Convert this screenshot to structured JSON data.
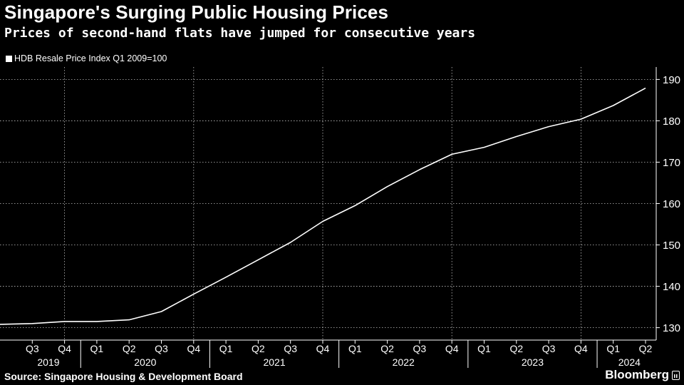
{
  "title": "Singapore's Surging Public Housing Prices",
  "subtitle": "Prices of second-hand flats have jumped for consecutive years",
  "source": "Source: Singapore Housing & Development Board",
  "brand": "Bloomberg",
  "colors": {
    "background": "#000000",
    "line": "#ffffff",
    "grid": "#ffffff",
    "text": "#ffffff"
  },
  "chart_data": {
    "type": "line",
    "legend_position": "top-left",
    "grid": true,
    "x": [
      "2019 Q2",
      "2019 Q3",
      "2019 Q4",
      "2020 Q1",
      "2020 Q2",
      "2020 Q3",
      "2020 Q4",
      "2021 Q1",
      "2021 Q2",
      "2021 Q3",
      "2021 Q4",
      "2022 Q1",
      "2022 Q2",
      "2022 Q3",
      "2022 Q4",
      "2023 Q1",
      "2023 Q2",
      "2023 Q3",
      "2023 Q4",
      "2024 Q1",
      "2024 Q2"
    ],
    "series": [
      {
        "name": "HDB Resale Price Index Q1 2009=100",
        "values": [
          130.8,
          131.0,
          131.5,
          131.5,
          131.9,
          133.9,
          138.1,
          142.2,
          146.4,
          150.6,
          155.7,
          159.5,
          164.1,
          168.2,
          171.9,
          173.6,
          176.2,
          178.6,
          180.4,
          183.7,
          187.9
        ]
      }
    ],
    "x_tick_labels": [
      "Q3",
      "Q4",
      "Q1",
      "Q2",
      "Q3",
      "Q4",
      "Q1",
      "Q2",
      "Q3",
      "Q4",
      "Q1",
      "Q2",
      "Q3",
      "Q4",
      "Q1",
      "Q2",
      "Q3",
      "Q4",
      "Q1",
      "Q2"
    ],
    "year_labels": [
      "2019",
      "2020",
      "2021",
      "2022",
      "2023",
      "2024"
    ],
    "y_ticks": [
      130,
      140,
      150,
      160,
      170,
      180,
      190
    ],
    "ylim": [
      127,
      193
    ],
    "y_axis_side": "right"
  }
}
